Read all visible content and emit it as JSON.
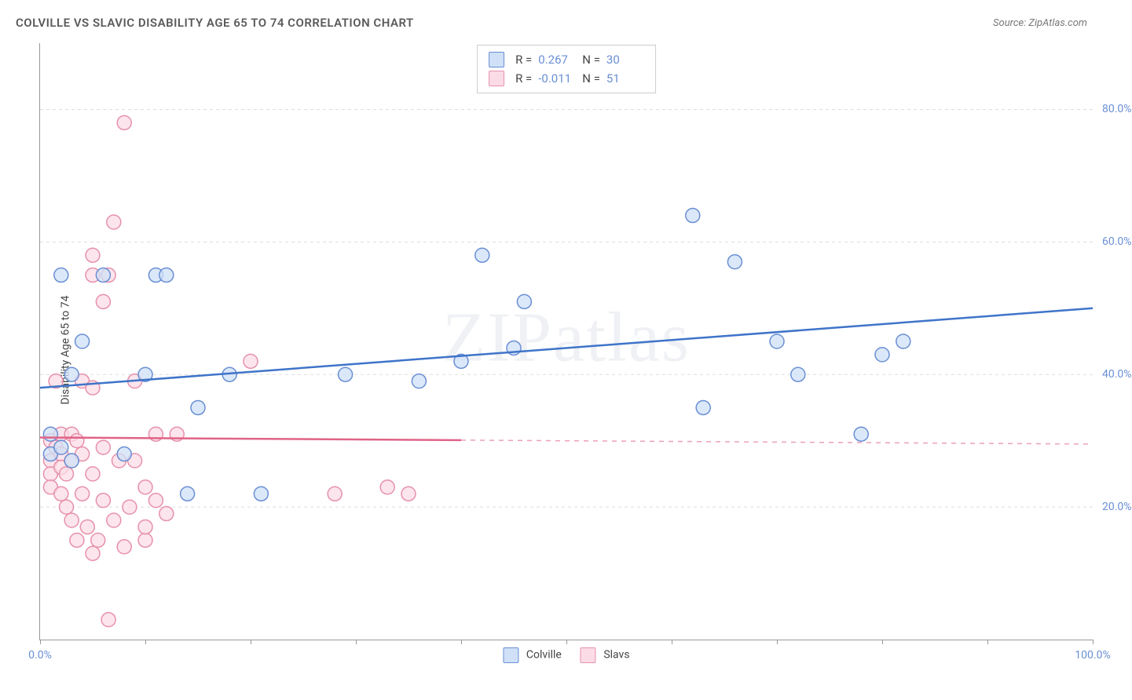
{
  "title": "COLVILLE VS SLAVIC DISABILITY AGE 65 TO 74 CORRELATION CHART",
  "source_label": "Source: ZipAtlas.com",
  "ylabel": "Disability Age 65 to 74",
  "watermark": "ZIPatlas",
  "chart": {
    "type": "scatter",
    "xlim": [
      0,
      100
    ],
    "ylim": [
      0,
      90
    ],
    "x_ticks": [
      0,
      10,
      20,
      30,
      40,
      50,
      60,
      70,
      80,
      90,
      100
    ],
    "x_tick_labels": {
      "0": "0.0%",
      "100": "100.0%"
    },
    "y_ticks": [
      20,
      40,
      60,
      80
    ],
    "y_tick_labels": {
      "20": "20.0%",
      "40": "40.0%",
      "60": "60.0%",
      "80": "80.0%"
    },
    "background_color": "#ffffff",
    "grid_color": "#dddddd",
    "axis_color": "#999999",
    "tick_label_color": "#6a8fd4",
    "marker_radius": 9,
    "marker_stroke_width": 1.5,
    "series": [
      {
        "name": "Colville",
        "fill": "#cfe0f7",
        "stroke": "#6a8fd4",
        "R": "0.267",
        "N": "30",
        "trend": {
          "y_at_x0": 38,
          "y_at_x100": 50,
          "color": "#3f74c9",
          "width": 2.5,
          "solid_until_x": 100
        },
        "points": [
          [
            1,
            31
          ],
          [
            1,
            28
          ],
          [
            2,
            55
          ],
          [
            2,
            29
          ],
          [
            3,
            27
          ],
          [
            3,
            40
          ],
          [
            4,
            45
          ],
          [
            6,
            55
          ],
          [
            8,
            28
          ],
          [
            10,
            40
          ],
          [
            11,
            55
          ],
          [
            12,
            55
          ],
          [
            14,
            22
          ],
          [
            15,
            35
          ],
          [
            18,
            40
          ],
          [
            21,
            22
          ],
          [
            29,
            40
          ],
          [
            36,
            39
          ],
          [
            40,
            42
          ],
          [
            42,
            58
          ],
          [
            45,
            44
          ],
          [
            46,
            51
          ],
          [
            62,
            64
          ],
          [
            63,
            35
          ],
          [
            66,
            57
          ],
          [
            70,
            45
          ],
          [
            72,
            40
          ],
          [
            78,
            31
          ],
          [
            80,
            43
          ],
          [
            82,
            45
          ]
        ]
      },
      {
        "name": "Slavs",
        "fill": "#fbdce6",
        "stroke": "#e791ab",
        "R": "-0.011",
        "N": "51",
        "trend": {
          "y_at_x0": 30.5,
          "y_at_x100": 29.5,
          "color": "#e06387",
          "width": 2.5,
          "solid_until_x": 40
        },
        "points": [
          [
            1,
            30
          ],
          [
            1,
            27
          ],
          [
            1,
            25
          ],
          [
            1,
            23
          ],
          [
            1.5,
            29
          ],
          [
            1.5,
            39
          ],
          [
            2,
            28
          ],
          [
            2,
            26
          ],
          [
            2,
            31
          ],
          [
            2,
            22
          ],
          [
            2.5,
            25
          ],
          [
            2.5,
            20
          ],
          [
            3,
            27
          ],
          [
            3,
            31
          ],
          [
            3,
            18
          ],
          [
            3.5,
            30
          ],
          [
            3.5,
            15
          ],
          [
            4,
            28
          ],
          [
            4,
            22
          ],
          [
            4,
            39
          ],
          [
            4.5,
            17
          ],
          [
            5,
            58
          ],
          [
            5,
            55
          ],
          [
            5,
            25
          ],
          [
            5,
            13
          ],
          [
            5,
            38
          ],
          [
            5.5,
            15
          ],
          [
            6,
            29
          ],
          [
            6,
            51
          ],
          [
            6,
            21
          ],
          [
            6.5,
            55
          ],
          [
            6.5,
            3
          ],
          [
            7,
            18
          ],
          [
            7,
            63
          ],
          [
            7.5,
            27
          ],
          [
            8,
            78
          ],
          [
            8,
            14
          ],
          [
            8.5,
            20
          ],
          [
            9,
            27
          ],
          [
            9,
            39
          ],
          [
            10,
            15
          ],
          [
            10,
            23
          ],
          [
            10,
            17
          ],
          [
            11,
            31
          ],
          [
            11,
            21
          ],
          [
            12,
            19
          ],
          [
            13,
            31
          ],
          [
            20,
            42
          ],
          [
            28,
            22
          ],
          [
            33,
            23
          ],
          [
            35,
            22
          ]
        ]
      }
    ],
    "bottom_legend": [
      {
        "swatch": "blue",
        "label": "Colville"
      },
      {
        "swatch": "pink",
        "label": "Slavs"
      }
    ],
    "stat_legend_labels": {
      "R": "R =",
      "N": "N ="
    }
  }
}
